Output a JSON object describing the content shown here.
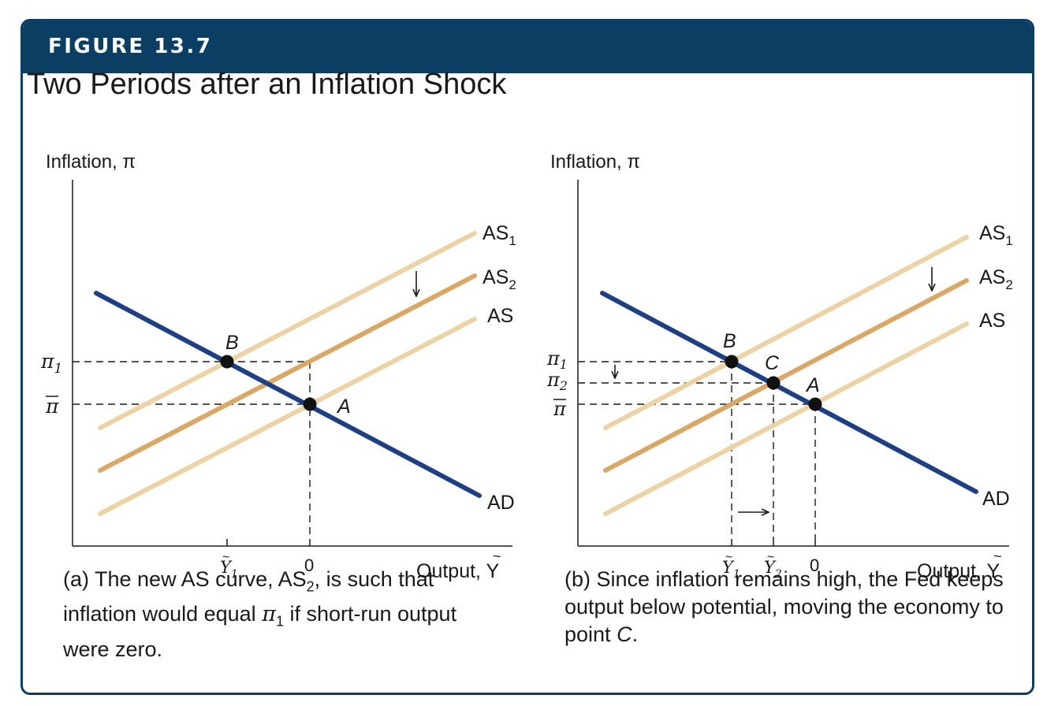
{
  "figure": {
    "label": "FIGURE 13.7",
    "title": "Two Periods after an Inflation Shock"
  },
  "colors": {
    "banner": "#0b3e63",
    "ad": "#1f3f85",
    "as_light": "#ecd3a6",
    "as2": "#d9a766",
    "text": "#1a1a1a"
  },
  "panel_a": {
    "y_axis_label": "Inflation, π",
    "x_axis_label": "Output, Y",
    "curves": {
      "as1": "AS",
      "as1_sub": "1",
      "as2": "AS",
      "as2_sub": "2",
      "as": "AS",
      "ad": "AD"
    },
    "points": {
      "b": "B",
      "a": "A"
    },
    "y_ticks": {
      "pi1": "π",
      "pi1_sub": "1",
      "pibar": "π"
    },
    "x_ticks": {
      "y1": "Y",
      "y1_sub": "1",
      "zero": "0"
    },
    "caption": {
      "p1": "(a) The new AS curve, AS",
      "sub1": "2",
      "p2": ", is such that inflation would equal ",
      "pi": "π",
      "sub2": "1",
      "p3": " if short-run output were zero."
    }
  },
  "panel_b": {
    "y_axis_label": "Inflation, π",
    "x_axis_label": "Output, Y",
    "curves": {
      "as1": "AS",
      "as1_sub": "1",
      "as2": "AS",
      "as2_sub": "2",
      "as": "AS",
      "ad": "AD"
    },
    "points": {
      "b": "B",
      "c": "C",
      "a": "A"
    },
    "y_ticks": {
      "pi1": "π",
      "pi1_sub": "1",
      "pi2": "π",
      "pi2_sub": "2",
      "pibar": "π"
    },
    "x_ticks": {
      "y1": "Y",
      "y1_sub": "1",
      "y2": "Y",
      "y2_sub": "2",
      "zero": "0"
    },
    "caption": {
      "p1": "(b) Since inflation remains high, the Fed keeps output below potential, moving the economy to point ",
      "point": "C",
      "p2": "."
    }
  }
}
